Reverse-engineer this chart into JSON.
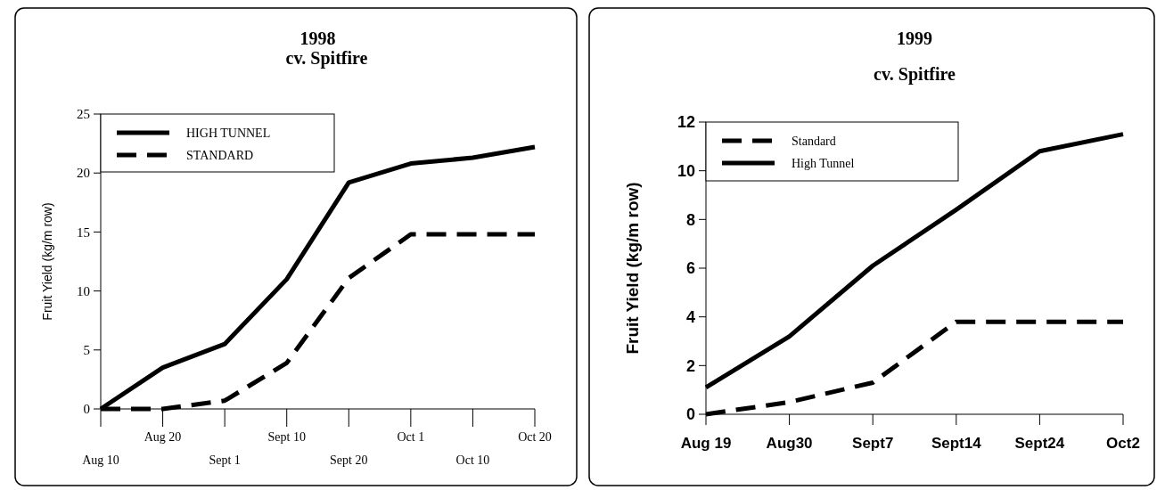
{
  "chart_data": [
    {
      "type": "line",
      "title": "1998",
      "subtitle": "cv. Spitfire",
      "ylabel": "Fruit Yield (kg/m row)",
      "categories": [
        "Aug 10",
        "Aug 20",
        "Sept 1",
        "Sept 10",
        "Sept 20",
        "Oct 1",
        "Oct 10",
        "Oct 20"
      ],
      "ylim": [
        0,
        25
      ],
      "yticks": [
        0,
        5,
        10,
        15,
        20,
        25
      ],
      "legend": "top left",
      "grid": false,
      "series": [
        {
          "name": "HIGH TUNNEL",
          "color": "#000000",
          "line_style": "solid",
          "values": [
            0,
            3.5,
            5.5,
            11,
            19.2,
            20.8,
            21.3,
            22.2
          ]
        },
        {
          "name": "STANDARD",
          "color": "#000000",
          "line_style": "dashed",
          "values": [
            0,
            0,
            0.7,
            3.9,
            11.1,
            14.8,
            14.8,
            14.8
          ]
        }
      ]
    },
    {
      "type": "line",
      "title": "1999",
      "subtitle": "cv. Spitfire",
      "ylabel": "Fruit Yield (kg/m row)",
      "categories": [
        "Aug 19",
        "Aug30",
        "Sept7",
        "Sept14",
        "Sept24",
        "Oct2"
      ],
      "ylim": [
        0,
        12
      ],
      "yticks": [
        0,
        2,
        4,
        6,
        8,
        10,
        12
      ],
      "legend": "top left",
      "grid": false,
      "series": [
        {
          "name": "Standard",
          "color": "#000000",
          "line_style": "dashed",
          "values": [
            0,
            0.5,
            1.3,
            3.8,
            3.8,
            3.8
          ]
        },
        {
          "name": "High Tunnel",
          "color": "#000000",
          "line_style": "solid",
          "values": [
            1.1,
            3.2,
            6.1,
            8.4,
            10.8,
            11.5
          ]
        }
      ]
    }
  ]
}
